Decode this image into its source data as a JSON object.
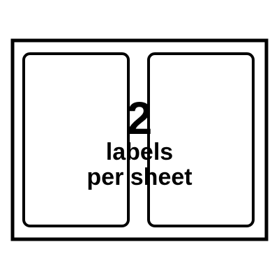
{
  "colors": {
    "ink": "#000000",
    "paper": "#ffffff"
  },
  "label": {
    "count": "2",
    "line1": "labels",
    "line2": "per sheet"
  }
}
